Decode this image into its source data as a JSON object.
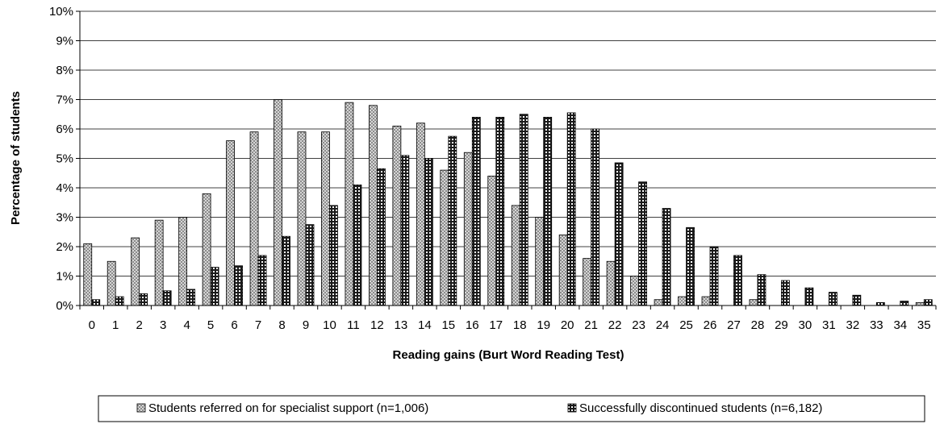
{
  "chart_data": {
    "type": "bar",
    "xlabel": "Reading gains (Burt Word Reading Test)",
    "ylabel": "Percentage of students",
    "ylim": [
      0,
      10
    ],
    "y_ticks": [
      "0%",
      "1%",
      "2%",
      "3%",
      "4%",
      "5%",
      "6%",
      "7%",
      "8%",
      "9%",
      "10%"
    ],
    "categories": [
      "0",
      "1",
      "2",
      "3",
      "4",
      "5",
      "6",
      "7",
      "8",
      "9",
      "10",
      "11",
      "12",
      "13",
      "14",
      "15",
      "16",
      "17",
      "18",
      "19",
      "20",
      "21",
      "22",
      "23",
      "24",
      "25",
      "26",
      "27",
      "28",
      "29",
      "30",
      "31",
      "32",
      "33",
      "34",
      "35"
    ],
    "grid": true,
    "legend_position": "bottom",
    "series": [
      {
        "name": "Students referred on for specialist support (n=1,006)",
        "pattern": "light-checker",
        "values": [
          2.1,
          1.5,
          2.3,
          2.9,
          3.0,
          3.8,
          5.6,
          5.9,
          7.0,
          5.9,
          5.9,
          6.9,
          6.8,
          6.1,
          6.2,
          4.6,
          5.2,
          4.4,
          3.4,
          3.0,
          2.4,
          1.6,
          1.5,
          1.0,
          0.2,
          0.3,
          0.3,
          0,
          0.2,
          0,
          0,
          0,
          0,
          0,
          0,
          0.1
        ]
      },
      {
        "name": "Successfully discontinued students (n=6,182)",
        "pattern": "dark-checker",
        "values": [
          0.2,
          0.3,
          0.4,
          0.5,
          0.55,
          1.3,
          1.35,
          1.7,
          2.35,
          2.75,
          3.4,
          4.1,
          4.65,
          5.1,
          5.0,
          5.75,
          6.4,
          6.4,
          6.5,
          6.4,
          6.55,
          6.0,
          4.85,
          4.2,
          3.3,
          2.65,
          2.0,
          1.7,
          1.05,
          0.85,
          0.6,
          0.45,
          0.35,
          0.1,
          0.15,
          0.2
        ]
      }
    ]
  }
}
